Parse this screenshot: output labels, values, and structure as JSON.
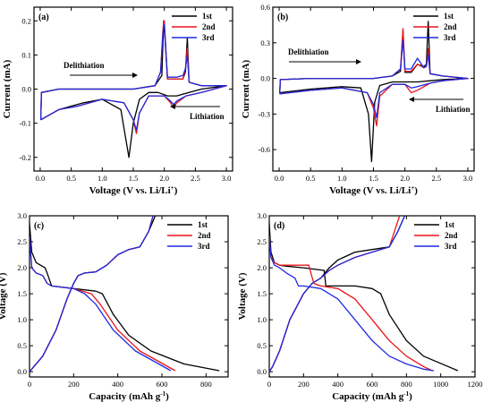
{
  "chart_data": [
    {
      "panel": "(a)",
      "type": "line",
      "xlabel": "Voltage (V vs. Li/Li",
      "xlabel_sup": "+",
      "xlabel_end": ")",
      "ylabel": "Current (mA)",
      "xlim": [
        -0.1,
        3.1
      ],
      "ylim": [
        -0.24,
        0.24
      ],
      "xticks": [
        "0.0",
        "0.5",
        "1.0",
        "1.5",
        "2.0",
        "2.5",
        "3.0"
      ],
      "yticks": [
        "-0.2",
        "-0.1",
        "0.0",
        "0.1",
        "0.2"
      ],
      "legend_position": "top-right",
      "annotations": [
        {
          "text": "Delithiation",
          "arrow": "right"
        },
        {
          "text": "Lithiation",
          "arrow": "left"
        }
      ],
      "series": [
        {
          "name": "1st",
          "color": "#000000",
          "x": [
            0.01,
            0.3,
            0.7,
            1.0,
            1.3,
            1.43,
            1.5,
            1.6,
            1.75,
            1.9,
            2.05,
            2.2,
            2.4,
            2.6,
            3.0,
            2.6,
            2.4,
            2.37,
            2.34,
            2.3,
            2.2,
            2.05,
            2.01,
            1.99,
            1.96,
            1.85,
            1.5,
            1.0,
            0.5,
            0.3,
            0.02,
            0.01
          ],
          "y": [
            -0.09,
            -0.06,
            -0.04,
            -0.03,
            -0.06,
            -0.2,
            -0.1,
            -0.03,
            -0.01,
            -0.01,
            -0.02,
            -0.02,
            -0.01,
            0.0,
            0.01,
            0.01,
            0.02,
            0.15,
            0.05,
            0.03,
            0.03,
            0.03,
            0.15,
            0.2,
            0.04,
            0.01,
            0.0,
            0.0,
            0.0,
            0.0,
            -0.01,
            -0.09
          ]
        },
        {
          "name": "2nd",
          "color": "#e8141a",
          "x": [
            0.01,
            0.3,
            0.6,
            1.0,
            1.35,
            1.5,
            1.55,
            1.6,
            1.75,
            2.0,
            2.1,
            2.15,
            2.2,
            2.35,
            2.6,
            3.0,
            2.6,
            2.4,
            2.37,
            2.34,
            2.3,
            2.2,
            2.05,
            2.0,
            1.98,
            1.94,
            1.85,
            1.5,
            1.0,
            0.5,
            0.3,
            0.02,
            0.01
          ],
          "y": [
            -0.09,
            -0.06,
            -0.05,
            -0.03,
            -0.04,
            -0.09,
            -0.13,
            -0.07,
            -0.02,
            -0.02,
            -0.04,
            -0.055,
            -0.04,
            -0.02,
            -0.01,
            0.01,
            0.01,
            0.02,
            0.12,
            0.06,
            0.03,
            0.03,
            0.03,
            0.2,
            0.18,
            0.05,
            0.01,
            0.0,
            0.0,
            0.0,
            0.0,
            -0.01,
            -0.09
          ]
        },
        {
          "name": "3rd",
          "color": "#1f2ae0",
          "x": [
            0.01,
            0.3,
            0.6,
            1.0,
            1.35,
            1.5,
            1.55,
            1.6,
            1.75,
            2.0,
            2.1,
            2.15,
            2.2,
            2.35,
            2.6,
            3.0,
            2.6,
            2.4,
            2.37,
            2.34,
            2.3,
            2.2,
            2.05,
            2.0,
            1.98,
            1.94,
            1.85,
            1.5,
            1.0,
            0.5,
            0.3,
            0.02,
            0.01
          ],
          "y": [
            -0.09,
            -0.06,
            -0.05,
            -0.03,
            -0.04,
            -0.09,
            -0.12,
            -0.07,
            -0.02,
            -0.02,
            -0.035,
            -0.045,
            -0.035,
            -0.02,
            -0.01,
            0.01,
            0.01,
            0.02,
            0.1,
            0.06,
            0.04,
            0.035,
            0.035,
            0.19,
            0.17,
            0.05,
            0.01,
            0.0,
            0.0,
            0.0,
            0.0,
            -0.01,
            -0.09
          ]
        }
      ]
    },
    {
      "panel": "(b)",
      "type": "line",
      "xlabel": "Voltage (V vs. Li/Li",
      "xlabel_sup": "+",
      "xlabel_end": ")",
      "ylabel": "Current (mA)",
      "xlim": [
        -0.1,
        3.1
      ],
      "ylim": [
        -0.78,
        0.6
      ],
      "xticks": [
        "0.0",
        "0.5",
        "1.0",
        "1.5",
        "2.0",
        "2.5",
        "3.0"
      ],
      "yticks": [
        "-0.6",
        "-0.3",
        "0.0",
        "0.3",
        "0.6"
      ],
      "legend_position": "top-right",
      "annotations": [
        {
          "text": "Delithiation",
          "arrow": "right"
        },
        {
          "text": "Lithiation",
          "arrow": "left"
        }
      ],
      "series": [
        {
          "name": "1st",
          "color": "#000000",
          "x": [
            0.01,
            0.5,
            1.0,
            1.3,
            1.42,
            1.47,
            1.52,
            1.6,
            1.8,
            2.0,
            2.2,
            2.4,
            2.6,
            3.0,
            2.6,
            2.4,
            2.37,
            2.34,
            2.3,
            2.2,
            2.1,
            2.0,
            1.97,
            1.93,
            1.8,
            1.5,
            1.0,
            0.5,
            0.02,
            0.01
          ],
          "y": [
            -0.12,
            -0.09,
            -0.07,
            -0.08,
            -0.3,
            -0.7,
            -0.2,
            -0.06,
            -0.03,
            -0.03,
            -0.03,
            -0.02,
            -0.01,
            0.0,
            0.02,
            0.04,
            0.48,
            0.12,
            0.1,
            0.12,
            0.05,
            0.05,
            0.4,
            0.06,
            0.02,
            0.0,
            0.0,
            0.0,
            -0.01,
            -0.12
          ]
        },
        {
          "name": "2nd",
          "color": "#e8141a",
          "x": [
            0.01,
            0.5,
            1.0,
            1.4,
            1.5,
            1.55,
            1.6,
            1.8,
            2.0,
            2.1,
            2.2,
            2.4,
            2.6,
            3.0,
            2.6,
            2.4,
            2.37,
            2.34,
            2.3,
            2.2,
            2.1,
            2.0,
            1.97,
            1.93,
            1.8,
            1.5,
            1.0,
            0.5,
            0.02,
            0.01
          ],
          "y": [
            -0.13,
            -0.1,
            -0.08,
            -0.12,
            -0.25,
            -0.4,
            -0.15,
            -0.05,
            -0.05,
            -0.12,
            -0.1,
            -0.04,
            -0.02,
            0.0,
            0.02,
            0.04,
            0.25,
            0.1,
            0.09,
            0.12,
            0.06,
            0.06,
            0.42,
            0.08,
            0.02,
            0.0,
            0.0,
            0.0,
            -0.01,
            -0.13
          ]
        },
        {
          "name": "3rd",
          "color": "#1f2ae0",
          "x": [
            0.01,
            0.5,
            1.0,
            1.4,
            1.5,
            1.55,
            1.6,
            1.8,
            2.0,
            2.1,
            2.2,
            2.4,
            2.6,
            3.0,
            2.6,
            2.4,
            2.37,
            2.34,
            2.3,
            2.2,
            2.1,
            2.0,
            1.97,
            1.93,
            1.8,
            1.5,
            1.0,
            0.5,
            0.02,
            0.01
          ],
          "y": [
            -0.13,
            -0.1,
            -0.08,
            -0.12,
            -0.22,
            -0.33,
            -0.12,
            -0.05,
            -0.05,
            -0.08,
            -0.07,
            -0.04,
            -0.02,
            0.0,
            0.02,
            0.04,
            0.2,
            0.1,
            0.09,
            0.17,
            0.08,
            0.08,
            0.32,
            0.08,
            0.02,
            0.0,
            0.0,
            0.0,
            -0.01,
            -0.13
          ]
        }
      ]
    },
    {
      "panel": "(c)",
      "type": "line",
      "xlabel": "Capacity (mAh g",
      "xlabel_sup": "-1",
      "xlabel_end": ")",
      "ylabel": "Voltage (V)",
      "xlim": [
        0,
        900
      ],
      "ylim": [
        -0.1,
        3.0
      ],
      "xticks": [
        "0",
        "200",
        "400",
        "600",
        "800"
      ],
      "yticks": [
        "0.0",
        "0.5",
        "1.0",
        "1.5",
        "2.0",
        "2.5",
        "3.0"
      ],
      "legend_position": "top-right",
      "series": [
        {
          "name": "1st",
          "color": "#000000",
          "x": [
            0,
            10,
            30,
            50,
            70,
            80,
            100,
            200,
            300,
            330,
            380,
            450,
            550,
            700,
            860,
            null,
            0,
            20,
            60,
            120,
            170,
            200,
            220,
            250,
            300,
            350,
            400,
            450,
            500,
            540,
            570
          ],
          "y": [
            2.85,
            2.3,
            2.1,
            2.05,
            2.0,
            1.9,
            1.65,
            1.6,
            1.55,
            1.5,
            1.1,
            0.7,
            0.4,
            0.15,
            0.02,
            null,
            0.0,
            0.1,
            0.3,
            0.8,
            1.4,
            1.7,
            1.85,
            1.9,
            1.92,
            2.05,
            2.25,
            2.35,
            2.4,
            2.7,
            3.0
          ]
        },
        {
          "name": "2nd",
          "color": "#e8141a",
          "x": [
            0,
            10,
            30,
            60,
            80,
            100,
            200,
            280,
            320,
            400,
            500,
            660,
            null,
            0,
            20,
            60,
            120,
            170,
            200,
            220,
            250,
            300,
            350,
            400,
            450,
            500,
            540,
            560
          ],
          "y": [
            2.6,
            2.0,
            1.9,
            1.85,
            1.7,
            1.65,
            1.6,
            1.5,
            1.3,
            0.8,
            0.4,
            0.02,
            null,
            0.0,
            0.1,
            0.3,
            0.8,
            1.4,
            1.7,
            1.85,
            1.9,
            1.92,
            2.05,
            2.25,
            2.35,
            2.4,
            2.7,
            3.0
          ]
        },
        {
          "name": "3rd",
          "color": "#1f2ae0",
          "x": [
            0,
            10,
            30,
            60,
            80,
            100,
            200,
            250,
            300,
            380,
            480,
            640,
            null,
            0,
            20,
            60,
            120,
            170,
            200,
            220,
            250,
            300,
            350,
            400,
            450,
            500,
            540,
            560
          ],
          "y": [
            2.6,
            2.0,
            1.9,
            1.85,
            1.7,
            1.65,
            1.6,
            1.5,
            1.3,
            0.8,
            0.4,
            0.02,
            null,
            0.0,
            0.1,
            0.3,
            0.8,
            1.4,
            1.7,
            1.85,
            1.9,
            1.92,
            2.05,
            2.25,
            2.35,
            2.4,
            2.7,
            3.0
          ]
        }
      ]
    },
    {
      "panel": "(d)",
      "type": "line",
      "xlabel": "Capacity (mAh g",
      "xlabel_sup": "-1",
      "xlabel_end": ")",
      "ylabel": "Voltage (V)",
      "xlim": [
        0,
        1200
      ],
      "ylim": [
        -0.1,
        3.0
      ],
      "xticks": [
        "0",
        "200",
        "400",
        "600",
        "800",
        "1000",
        "1200"
      ],
      "yticks": [
        "0.0",
        "0.5",
        "1.0",
        "1.5",
        "2.0",
        "2.5",
        "3.0"
      ],
      "legend_position": "top-right",
      "series": [
        {
          "name": "1st",
          "color": "#000000",
          "x": [
            0,
            10,
            30,
            60,
            100,
            200,
            320,
            330,
            400,
            500,
            600,
            650,
            700,
            800,
            900,
            1100,
            null,
            0,
            20,
            60,
            120,
            200,
            250,
            300,
            350,
            400,
            500,
            600,
            700,
            750,
            790
          ],
          "y": [
            2.85,
            2.3,
            2.1,
            2.05,
            2.03,
            2.0,
            1.95,
            1.65,
            1.65,
            1.65,
            1.6,
            1.5,
            1.1,
            0.6,
            0.3,
            0.02,
            null,
            0.0,
            0.1,
            0.4,
            1.0,
            1.5,
            1.7,
            1.8,
            2.0,
            2.15,
            2.3,
            2.35,
            2.4,
            2.7,
            3.0
          ]
        },
        {
          "name": "2nd",
          "color": "#e8141a",
          "x": [
            0,
            10,
            30,
            60,
            150,
            230,
            260,
            300,
            400,
            500,
            600,
            700,
            800,
            900,
            950,
            null,
            0,
            20,
            60,
            120,
            200,
            250,
            300,
            350,
            400,
            500,
            600,
            700,
            730,
            760
          ],
          "y": [
            2.6,
            2.2,
            2.1,
            2.05,
            2.05,
            2.05,
            1.7,
            1.65,
            1.6,
            1.4,
            1.0,
            0.6,
            0.3,
            0.1,
            0.02,
            null,
            0.0,
            0.1,
            0.4,
            1.0,
            1.5,
            1.7,
            1.8,
            1.95,
            2.05,
            2.2,
            2.3,
            2.4,
            2.7,
            3.0
          ]
        },
        {
          "name": "3rd",
          "color": "#1f2ae0",
          "x": [
            0,
            10,
            30,
            60,
            100,
            150,
            170,
            200,
            300,
            400,
            500,
            600,
            700,
            800,
            900,
            960,
            null,
            0,
            20,
            60,
            120,
            200,
            250,
            300,
            350,
            400,
            500,
            600,
            700,
            750,
            790
          ],
          "y": [
            2.6,
            2.2,
            2.05,
            2.0,
            1.9,
            1.8,
            1.65,
            1.65,
            1.6,
            1.4,
            1.0,
            0.6,
            0.3,
            0.15,
            0.05,
            0.02,
            null,
            0.0,
            0.1,
            0.4,
            1.0,
            1.5,
            1.7,
            1.8,
            1.95,
            2.05,
            2.2,
            2.3,
            2.4,
            2.7,
            3.0
          ]
        }
      ]
    }
  ]
}
